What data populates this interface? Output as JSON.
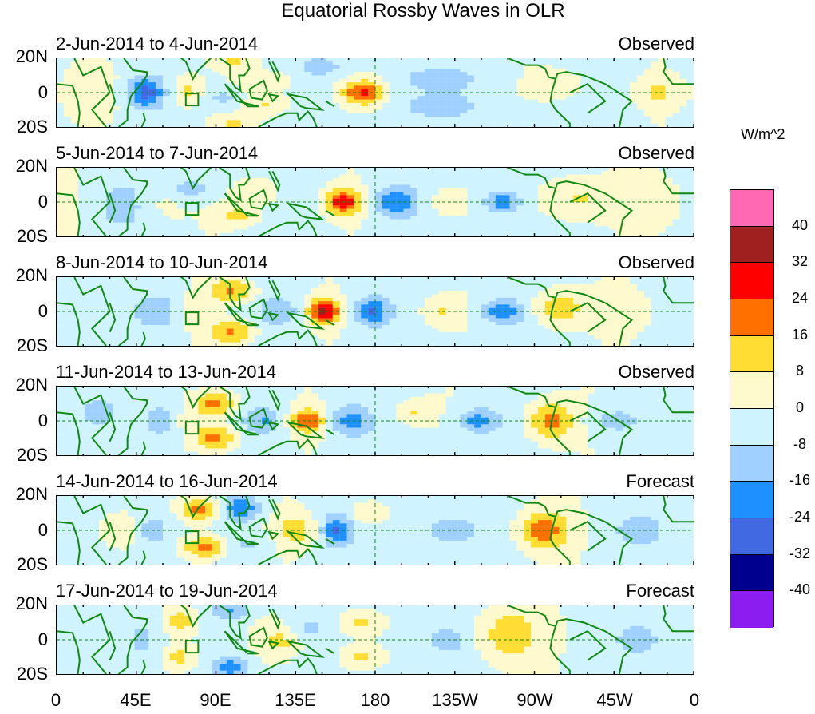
{
  "chart_data": {
    "type": "heatmap",
    "title": "Equatorial Rossby Waves in OLR",
    "units": "W/m^2",
    "x_tick_labels": [
      "0",
      "45E",
      "90E",
      "135E",
      "180",
      "135W",
      "90W",
      "45W",
      "0"
    ],
    "x_ticks_lon": [
      0,
      45,
      90,
      135,
      180,
      225,
      270,
      315,
      360
    ],
    "y_tick_labels": [
      "20N",
      "0",
      "20S"
    ],
    "xlim": [
      0,
      360
    ],
    "ylim": [
      -20,
      20
    ],
    "colorbar": {
      "levels": [
        -40,
        -32,
        -24,
        -16,
        -8,
        0,
        8,
        16,
        24,
        32,
        40
      ],
      "level_labels": [
        "40",
        "32",
        "24",
        "16",
        "8",
        "0",
        "-8",
        "-16",
        "-24",
        "-32",
        "-40"
      ],
      "colors": [
        "#8b1df0",
        "#00008f",
        "#4169e1",
        "#1e90ff",
        "#a0d0ff",
        "#d0f4ff",
        "#fffacd",
        "#ffdd33",
        "#ff7000",
        "#ff0000",
        "#a02020",
        "#ff69b4"
      ]
    },
    "feature_format": "[lon, lat, anomaly W/m^2, lon sigma deg, lat sigma deg]",
    "panels": [
      {
        "label": "2-Jun-2014 to 4-Jun-2014",
        "type": "Observed",
        "baseline": -2,
        "features": [
          [
            50,
            0,
            -26,
            7,
            6
          ],
          [
            173,
            0,
            26,
            8,
            5
          ],
          [
            74,
            1,
            12,
            6,
            6
          ],
          [
            120,
            6,
            10,
            9,
            4
          ],
          [
            120,
            -7,
            10,
            9,
            4
          ],
          [
            94,
            -3,
            -10,
            7,
            4
          ],
          [
            100,
            18,
            10,
            8,
            3
          ],
          [
            100,
            -18,
            10,
            8,
            3
          ],
          [
            215,
            8,
            -9,
            20,
            5
          ],
          [
            215,
            -8,
            -9,
            20,
            5
          ],
          [
            285,
            5,
            9,
            10,
            6
          ],
          [
            340,
            0,
            10,
            8,
            5
          ],
          [
            20,
            0,
            4,
            15,
            10
          ],
          [
            150,
            15,
            -8,
            10,
            4
          ]
        ]
      },
      {
        "label": "5-Jun-2014 to 7-Jun-2014",
        "type": "Observed",
        "baseline": -2,
        "features": [
          [
            162,
            0,
            30,
            7,
            5
          ],
          [
            191,
            0,
            -22,
            8,
            6
          ],
          [
            252,
            0,
            -20,
            8,
            5
          ],
          [
            293,
            2,
            12,
            14,
            9
          ],
          [
            103,
            -8,
            12,
            8,
            4
          ],
          [
            115,
            6,
            10,
            8,
            5
          ],
          [
            76,
            8,
            -12,
            8,
            5
          ],
          [
            36,
            -2,
            -12,
            8,
            8
          ],
          [
            221,
            0,
            8,
            7,
            6
          ],
          [
            335,
            0,
            6,
            15,
            10
          ],
          [
            60,
            0,
            4,
            10,
            10
          ]
        ]
      },
      {
        "label": "8-Jun-2014 to 10-Jun-2014",
        "type": "Observed",
        "baseline": -2,
        "features": [
          [
            151,
            0,
            34,
            6,
            5
          ],
          [
            178,
            0,
            -22,
            7,
            6
          ],
          [
            252,
            0,
            -22,
            8,
            5
          ],
          [
            216,
            0,
            10,
            7,
            6
          ],
          [
            99,
            12,
            20,
            9,
            5
          ],
          [
            99,
            -12,
            20,
            9,
            5
          ],
          [
            284,
            2,
            16,
            10,
            8
          ],
          [
            59,
            0,
            -12,
            10,
            8
          ],
          [
            126,
            0,
            -12,
            8,
            6
          ],
          [
            320,
            0,
            6,
            12,
            8
          ],
          [
            75,
            0,
            6,
            6,
            6
          ]
        ]
      },
      {
        "label": "11-Jun-2014 to 13-Jun-2014",
        "type": "Observed",
        "baseline": -2,
        "features": [
          [
            142,
            0,
            24,
            7,
            5
          ],
          [
            90,
            10,
            22,
            8,
            5
          ],
          [
            90,
            -10,
            22,
            8,
            5
          ],
          [
            166,
            0,
            -18,
            8,
            6
          ],
          [
            117,
            0,
            -14,
            8,
            6
          ],
          [
            202,
            5,
            10,
            8,
            5
          ],
          [
            238,
            0,
            -18,
            9,
            5
          ],
          [
            279,
            0,
            22,
            9,
            8
          ],
          [
            59,
            0,
            -12,
            8,
            8
          ],
          [
            315,
            0,
            -10,
            10,
            6
          ],
          [
            75,
            0,
            8,
            6,
            5
          ],
          [
            25,
            5,
            -6,
            10,
            8
          ]
        ]
      },
      {
        "label": "14-Jun-2014 to 16-Jun-2014",
        "type": "Forecast",
        "baseline": -2,
        "features": [
          [
            81,
            12,
            22,
            8,
            5
          ],
          [
            83,
            -10,
            22,
            8,
            5
          ],
          [
            104,
            13,
            -22,
            7,
            5
          ],
          [
            135,
            0,
            14,
            8,
            6
          ],
          [
            158,
            0,
            -22,
            6,
            6
          ],
          [
            176,
            10,
            10,
            7,
            5
          ],
          [
            221,
            0,
            -12,
            12,
            6
          ],
          [
            275,
            0,
            22,
            10,
            8
          ],
          [
            54,
            0,
            -12,
            8,
            8
          ],
          [
            36,
            0,
            8,
            8,
            6
          ],
          [
            330,
            0,
            -10,
            10,
            6
          ],
          [
            110,
            -8,
            -8,
            8,
            4
          ]
        ]
      },
      {
        "label": "17-Jun-2014 to 19-Jun-2014",
        "type": "Forecast",
        "baseline": -2,
        "features": [
          [
            70,
            11,
            16,
            7,
            6
          ],
          [
            70,
            -10,
            14,
            7,
            6
          ],
          [
            99,
            17,
            -16,
            7,
            4
          ],
          [
            99,
            -16,
            -20,
            7,
            4
          ],
          [
            127,
            0,
            12,
            8,
            6
          ],
          [
            170,
            10,
            13,
            7,
            5
          ],
          [
            170,
            -10,
            13,
            7,
            5
          ],
          [
            220,
            0,
            -10,
            9,
            6
          ],
          [
            255,
            3,
            15,
            13,
            12
          ],
          [
            330,
            0,
            -10,
            9,
            7
          ],
          [
            47,
            0,
            -9,
            8,
            10
          ],
          [
            140,
            6,
            -8,
            8,
            5
          ]
        ]
      }
    ]
  }
}
